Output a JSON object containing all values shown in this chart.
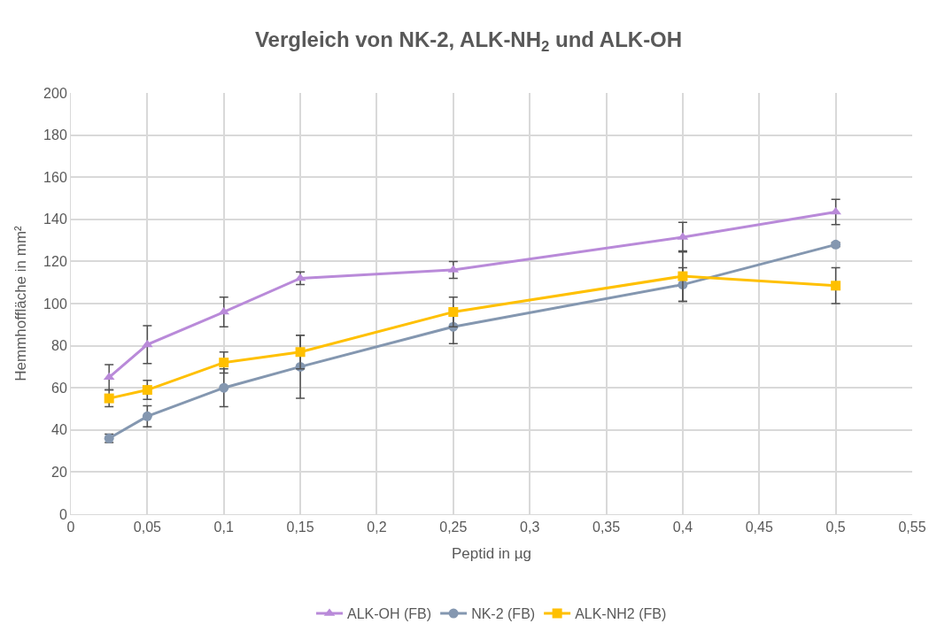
{
  "chart_data": {
    "type": "line",
    "title": "Vergleich von NK-2, ALK-NH$_{2}$ und ALK-OH",
    "xlabel": "Peptid in µg",
    "ylabel": "Hemmhoffläche in mm²",
    "x": [
      0.025,
      0.05,
      0.1,
      0.15,
      0.25,
      0.4,
      0.5
    ],
    "series": [
      {
        "name": "ALK-OH (FB)",
        "color": "#b98ad9",
        "marker": "triangle",
        "values": [
          65,
          80.5,
          96,
          112,
          116,
          131.5,
          143.5
        ],
        "errors": [
          6,
          9,
          7,
          3,
          4,
          7,
          6
        ]
      },
      {
        "name": "NK-2 (FB)",
        "color": "#8497b0",
        "marker": "circle",
        "values": [
          36,
          46.5,
          60,
          70,
          89,
          109,
          128
        ],
        "errors": [
          2,
          5,
          9,
          15,
          8,
          8,
          1
        ]
      },
      {
        "name": "ALK-NH2 (FB)",
        "color": "#ffc000",
        "marker": "square",
        "values": [
          55,
          59,
          72,
          77,
          96,
          113,
          108.5
        ],
        "errors": [
          4,
          4.5,
          5,
          8,
          7,
          12,
          8.5
        ]
      }
    ],
    "xlim": [
      0,
      0.55
    ],
    "xticks": [
      {
        "value": 0,
        "label": "0"
      },
      {
        "value": 0.05,
        "label": "0,05"
      },
      {
        "value": 0.1,
        "label": "0,1"
      },
      {
        "value": 0.15,
        "label": "0,15"
      },
      {
        "value": 0.2,
        "label": "0,2"
      },
      {
        "value": 0.25,
        "label": "0,25"
      },
      {
        "value": 0.3,
        "label": "0,3"
      },
      {
        "value": 0.35,
        "label": "0,35"
      },
      {
        "value": 0.4,
        "label": "0,4"
      },
      {
        "value": 0.45,
        "label": "0,45"
      },
      {
        "value": 0.5,
        "label": "0,5"
      },
      {
        "value": 0.55,
        "label": "0,55"
      }
    ],
    "ylim": [
      0,
      200
    ],
    "yticks": [
      0,
      20,
      40,
      60,
      80,
      100,
      120,
      140,
      160,
      180,
      200
    ],
    "grid": true,
    "legend": "bottom",
    "line_style": "solid"
  }
}
